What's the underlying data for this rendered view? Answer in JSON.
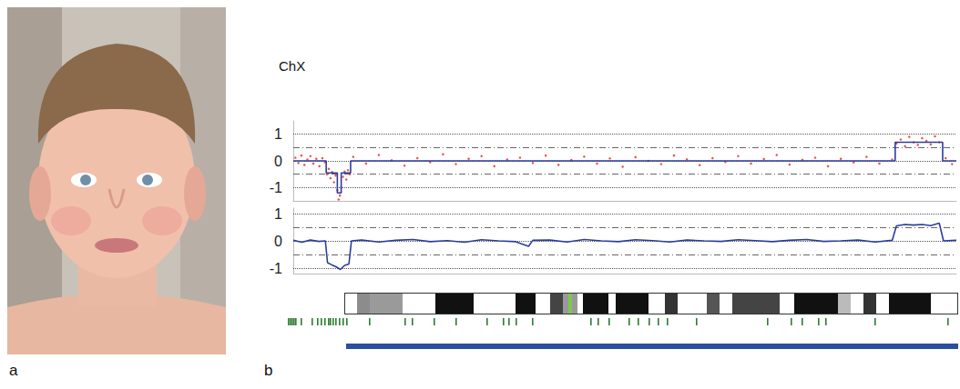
{
  "panel_labels": [
    "a",
    "b"
  ],
  "chromosome": "ChX",
  "chart_data": [
    {
      "type": "scatter",
      "xlim": [
        0,
        155
      ],
      "ylim": [
        -1.5,
        1.5
      ],
      "yticks": [
        -1,
        0,
        1
      ],
      "grid": true,
      "tick_labels": "y",
      "thresholds": [
        -0.5,
        0.5
      ],
      "series": [
        {
          "type": "scatter",
          "marker": "circle",
          "color": "#e8241c",
          "x": [
            0.5,
            1.2,
            1.9,
            2.6,
            3.3,
            4.0,
            4.7,
            5.4,
            6.1,
            6.8,
            7.4,
            7.9,
            8.3,
            8.7,
            9.1,
            9.5,
            9.9,
            10.3,
            10.6,
            10.9,
            11.2,
            11.6,
            12.0,
            12.4,
            12.8,
            13.2,
            14,
            17,
            20,
            23,
            26,
            29,
            32,
            35,
            38,
            41,
            44,
            47,
            50,
            53,
            56,
            59,
            62,
            65,
            68,
            71,
            74,
            77,
            80,
            83,
            86,
            89,
            92,
            95,
            98,
            101,
            104,
            107,
            110,
            113,
            116,
            119,
            122,
            125,
            128,
            131,
            134,
            137,
            140,
            141,
            142,
            143,
            144,
            145,
            146,
            147,
            148,
            149,
            150,
            151,
            152.5,
            154
          ],
          "values": [
            0.12,
            -0.08,
            0.2,
            -0.15,
            0.05,
            0.18,
            -0.1,
            0.08,
            -0.2,
            0.1,
            -0.05,
            -0.5,
            -0.3,
            -0.65,
            -0.42,
            -0.8,
            -0.55,
            -1.1,
            -1.45,
            -1.3,
            -1.0,
            -0.6,
            -0.4,
            -0.7,
            -0.35,
            -0.5,
            0.15,
            -0.1,
            0.22,
            0.02,
            -0.18,
            0.1,
            -0.05,
            0.25,
            -0.12,
            0.08,
            0.18,
            -0.2,
            0.05,
            0.12,
            -0.08,
            0.2,
            -0.15,
            0.03,
            0.16,
            -0.1,
            0.09,
            -0.22,
            0.14,
            0.0,
            -0.12,
            0.2,
            0.06,
            -0.16,
            0.1,
            -0.04,
            0.18,
            -0.1,
            0.07,
            0.22,
            -0.14,
            0.04,
            0.12,
            -0.2,
            0.08,
            -0.06,
            0.15,
            -0.1,
            0.05,
            0.65,
            0.8,
            0.55,
            0.9,
            0.7,
            0.6,
            0.85,
            0.75,
            0.62,
            0.92,
            0.7,
            0.1,
            -0.12
          ]
        },
        {
          "type": "line",
          "line_style": "solid",
          "color": "#2c3d9c",
          "x": [
            0,
            7.7,
            7.7,
            10.3,
            10.3,
            11.2,
            11.2,
            13.4,
            13.4,
            140.7,
            140.7,
            151.8,
            151.8,
            155
          ],
          "values": [
            0,
            0,
            -0.45,
            -0.45,
            -1.2,
            -1.2,
            -0.45,
            -0.45,
            0,
            0,
            0.7,
            0.7,
            0,
            0
          ]
        }
      ]
    },
    {
      "type": "line",
      "xlim": [
        0,
        155
      ],
      "ylim": [
        -1.2,
        1.2
      ],
      "yticks": [
        -1,
        0,
        1
      ],
      "grid": true,
      "tick_labels": "y",
      "thresholds": [
        -0.5,
        0.5
      ],
      "series": [
        {
          "type": "line",
          "line_style": "solid",
          "color": "#2c3d9c",
          "x": [
            0,
            2,
            4,
            6,
            7.5,
            8,
            9,
            10,
            11,
            12,
            13,
            13.6,
            16,
            20,
            24,
            28,
            32,
            36,
            40,
            44,
            48,
            52,
            55,
            56,
            60,
            64,
            68,
            72,
            76,
            80,
            84,
            88,
            92,
            96,
            100,
            104,
            108,
            112,
            116,
            120,
            124,
            128,
            132,
            136,
            140,
            141,
            143,
            145,
            147,
            149,
            151,
            152,
            155
          ],
          "values": [
            0.02,
            -0.05,
            0.03,
            -0.02,
            0.0,
            -0.8,
            -0.88,
            -0.95,
            -1.05,
            -0.9,
            -0.85,
            0.0,
            0.03,
            -0.04,
            0.02,
            0.05,
            -0.03,
            0.01,
            -0.05,
            0.04,
            0.0,
            -0.03,
            -0.2,
            0.02,
            0.03,
            -0.04,
            0.05,
            0.0,
            -0.03,
            0.04,
            0.01,
            -0.04,
            0.03,
            0.0,
            -0.02,
            0.04,
            0.01,
            -0.03,
            0.02,
            0.05,
            -0.02,
            0.0,
            0.03,
            -0.04,
            0.02,
            0.55,
            0.6,
            0.58,
            0.6,
            0.56,
            0.65,
            0.0,
            0.02
          ]
        }
      ]
    }
  ]
}
